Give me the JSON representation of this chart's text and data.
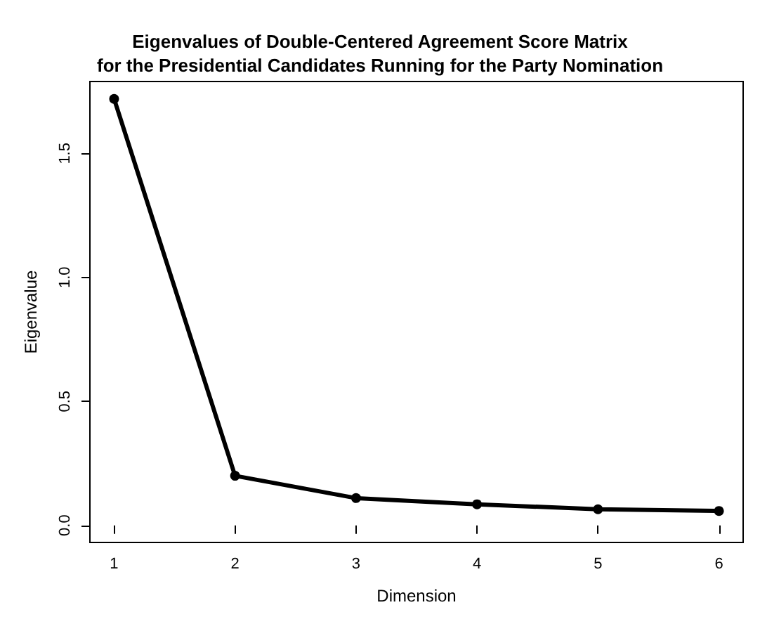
{
  "chart_data": {
    "type": "line",
    "title": "Eigenvalues of Double-Centered Agreement Score Matrix\nfor the Presidential Candidates Running for the Party Nomination",
    "xlabel": "Dimension",
    "ylabel": "Eigenvalue",
    "x": [
      1,
      2,
      3,
      4,
      5,
      6
    ],
    "series": [
      {
        "color": "#000000",
        "values": [
          1.72,
          0.2,
          0.11,
          0.085,
          0.065,
          0.058
        ]
      }
    ],
    "xlim": [
      0.8,
      6.2
    ],
    "xticks": [
      1,
      2,
      3,
      4,
      5,
      6
    ],
    "ylim": [
      -0.069,
      1.79
    ],
    "yticks": [
      {
        "value": 0,
        "label": "0.0"
      },
      {
        "value": 0.5,
        "label": "0.5"
      },
      {
        "value": 1,
        "label": "1.0"
      },
      {
        "value": 1.5,
        "label": "1.5"
      }
    ],
    "grid": false,
    "marker": "circle",
    "line_style": "solid"
  }
}
